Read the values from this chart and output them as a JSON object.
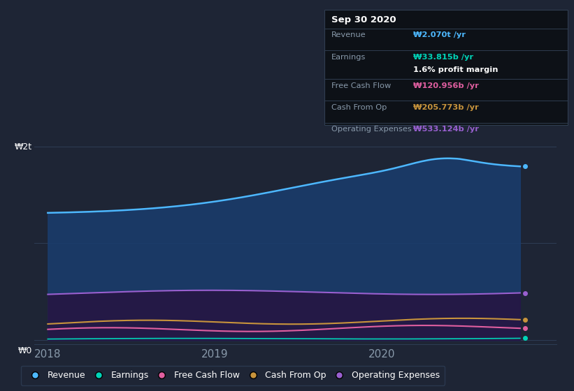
{
  "bg_color": "#1e2535",
  "plot_bg_color": "#1e2535",
  "y_label_W2t": "₩2t",
  "y_label_W0": "₩0",
  "legend_items": [
    {
      "label": "Revenue",
      "color": "#4db8ff"
    },
    {
      "label": "Earnings",
      "color": "#00d4b8"
    },
    {
      "label": "Free Cash Flow",
      "color": "#e05fa0"
    },
    {
      "label": "Cash From Op",
      "color": "#c8943c"
    },
    {
      "label": "Operating Expenses",
      "color": "#9960d0"
    }
  ],
  "tooltip": {
    "date": "Sep 30 2020",
    "revenue_label": "Revenue",
    "revenue_value": "₩2.070t /yr",
    "earnings_label": "Earnings",
    "earnings_value": "₩33.815b /yr",
    "profit_margin": "1.6% profit margin",
    "fcf_label": "Free Cash Flow",
    "fcf_value": "₩120.956b /yr",
    "cashop_label": "Cash From Op",
    "cashop_value": "₩205.773b /yr",
    "opex_label": "Operating Expenses",
    "opex_value": "₩533.124b /yr"
  },
  "revenue_color": "#4db8ff",
  "revenue_fill": "#1a3a5c",
  "earnings_color": "#00d4b8",
  "fcf_color": "#e05fa0",
  "cashop_color": "#c8943c",
  "opex_color": "#9960d0",
  "opex_fill": "#2a1a50",
  "grid_color": "#2e3d55",
  "spine_color": "#2e3d55",
  "tick_color": "#8899aa",
  "tooltip_bg": "#0d1117",
  "tooltip_border": "#303d50",
  "tooltip_label_color": "#8899aa",
  "tooltip_title_color": "#ffffff"
}
